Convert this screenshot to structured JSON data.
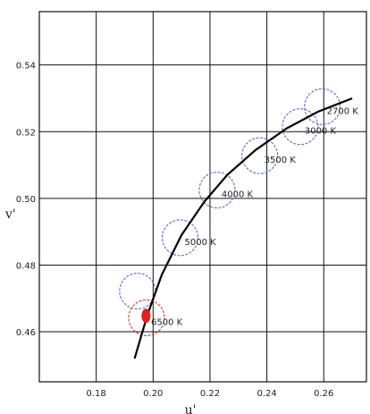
{
  "chart_data": {
    "type": "scatter",
    "xlabel": "u'",
    "ylabel": "v'",
    "xlim": [
      0.16,
      0.275
    ],
    "ylim": [
      0.445,
      0.556
    ],
    "x_ticks": [
      "0.18",
      "0.20",
      "0.22",
      "0.24",
      "0.26"
    ],
    "y_ticks": [
      "0.46",
      "0.48",
      "0.50",
      "0.52",
      "0.54"
    ],
    "grid": true,
    "planckian_locus": {
      "x": [
        0.1935,
        0.198,
        0.203,
        0.21,
        0.218,
        0.226,
        0.236,
        0.247,
        0.258,
        0.27
      ],
      "y": [
        0.452,
        0.465,
        0.477,
        0.489,
        0.499,
        0.507,
        0.5145,
        0.521,
        0.526,
        0.53
      ],
      "color": "#000000"
    },
    "cct_points": [
      {
        "label": "2700 K",
        "u": 0.2595,
        "v": 0.5275,
        "circle_color": "#5a6ec8"
      },
      {
        "label": "3000 K",
        "u": 0.2517,
        "v": 0.5215,
        "circle_color": "#5a6ec8"
      },
      {
        "label": "3500 K",
        "u": 0.2375,
        "v": 0.5128,
        "circle_color": "#5a6ec8"
      },
      {
        "label": "4000 K",
        "u": 0.2225,
        "v": 0.5025,
        "circle_color": "#5a6ec8"
      },
      {
        "label": "5000 K",
        "u": 0.2095,
        "v": 0.4882,
        "circle_color": "#5a6ec8"
      },
      {
        "label": "",
        "u": 0.1945,
        "v": 0.4722,
        "circle_color": "#5a6ec8"
      },
      {
        "label": "6500 K",
        "u": 0.1977,
        "v": 0.4642,
        "circle_color": "#d63a3a"
      }
    ],
    "highlight_point": {
      "u": 0.1975,
      "v": 0.4648,
      "color": "#e0201c"
    }
  }
}
